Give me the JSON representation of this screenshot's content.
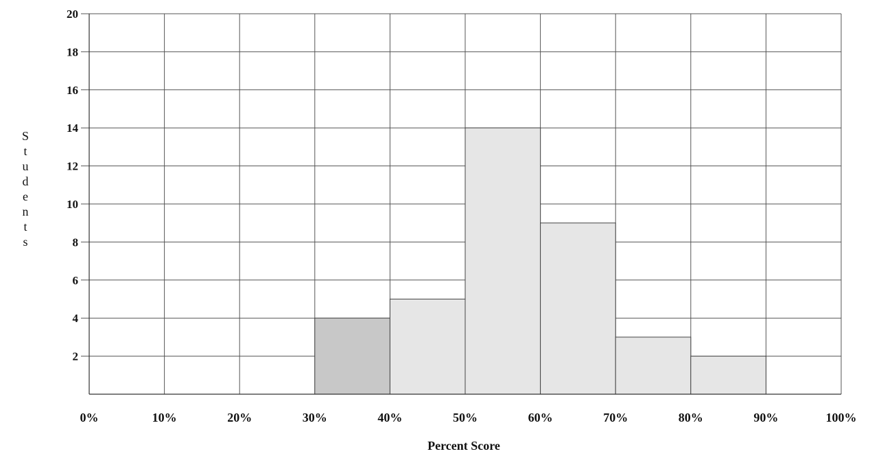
{
  "chart_data": {
    "type": "bar",
    "title": "",
    "xlabel": "Percent Score",
    "ylabel": "Students",
    "x_ticks": [
      "0%",
      "10%",
      "20%",
      "30%",
      "40%",
      "50%",
      "60%",
      "70%",
      "80%",
      "90%",
      "100%"
    ],
    "y_ticks": [
      2,
      4,
      6,
      8,
      10,
      12,
      14,
      16,
      18,
      20
    ],
    "ylim": [
      0,
      20
    ],
    "xlim": [
      0,
      100
    ],
    "bins": [
      {
        "start": 30,
        "end": 40,
        "value": 4
      },
      {
        "start": 40,
        "end": 50,
        "value": 5
      },
      {
        "start": 50,
        "end": 60,
        "value": 14
      },
      {
        "start": 60,
        "end": 70,
        "value": 9
      },
      {
        "start": 70,
        "end": 80,
        "value": 3
      },
      {
        "start": 80,
        "end": 90,
        "value": 2
      }
    ],
    "bar_fill": "#e6e6e6",
    "first_bar_fill": "#c8c8c8",
    "grid": true,
    "legend": false
  }
}
